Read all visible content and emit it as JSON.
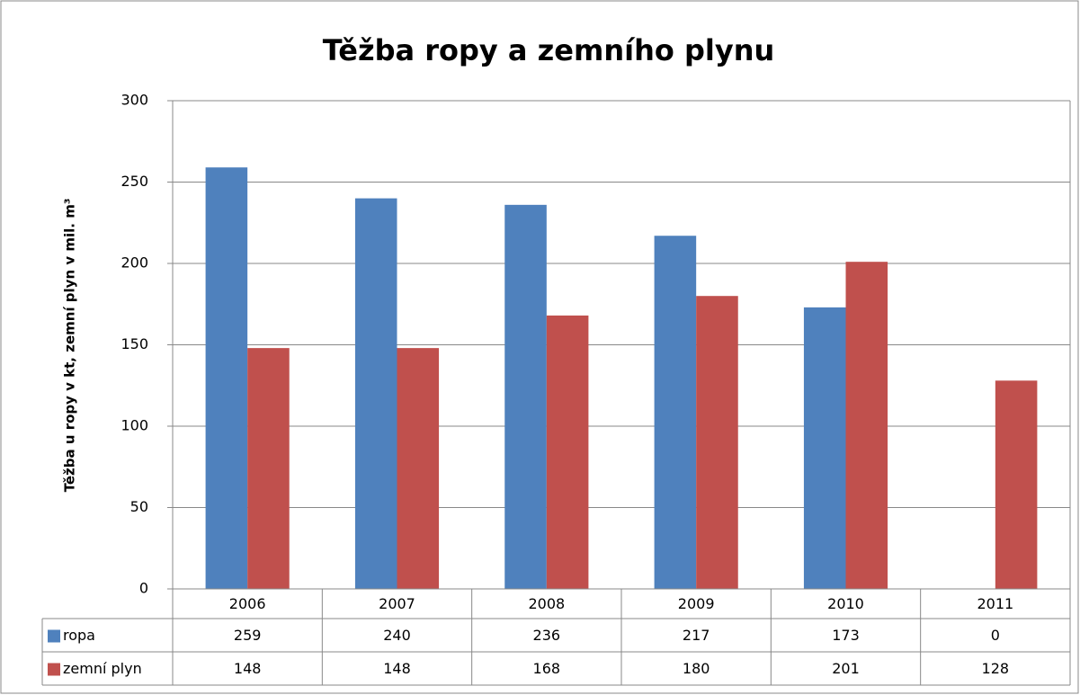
{
  "chart_data": {
    "type": "bar",
    "title": "Těžba ropy a zemního plynu",
    "y_label": "Těžba u ropy v kt, zemní plyn v mil. m³",
    "categories": [
      "2006",
      "2007",
      "2008",
      "2009",
      "2010",
      "2011"
    ],
    "series": [
      {
        "name": "ropa",
        "color": "#4f81bd",
        "values": [
          259,
          240,
          236,
          217,
          173,
          0
        ]
      },
      {
        "name": "zemní plyn",
        "color": "#c0504d",
        "values": [
          148,
          148,
          168,
          180,
          201,
          128
        ]
      }
    ],
    "ylim": [
      0,
      300
    ],
    "yticks": [
      0,
      50,
      100,
      150,
      200,
      250,
      300
    ],
    "grid": true,
    "data_table": true
  }
}
